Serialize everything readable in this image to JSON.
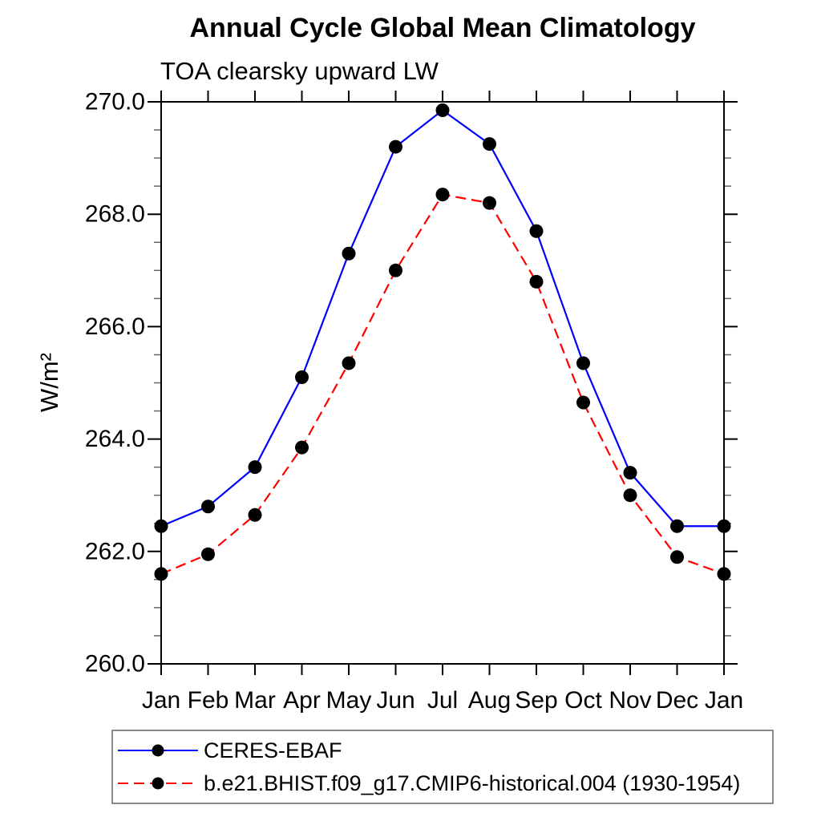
{
  "chart_data": {
    "type": "line",
    "title": "Annual Cycle Global Mean Climatology",
    "subtitle": "TOA clearsky upward LW",
    "ylabel": "W/m²",
    "xlabel": "",
    "x_categories": [
      "Jan",
      "Feb",
      "Mar",
      "Apr",
      "May",
      "Jun",
      "Jul",
      "Aug",
      "Sep",
      "Oct",
      "Nov",
      "Dec",
      "Jan"
    ],
    "ylim": [
      260.0,
      270.0
    ],
    "y_major_ticks": [
      260.0,
      262.0,
      264.0,
      266.0,
      268.0,
      270.0
    ],
    "y_tick_labels": [
      "260.0",
      "262.0",
      "264.0",
      "266.0",
      "268.0",
      "270.0"
    ],
    "y_minor_step": 0.5,
    "grid": false,
    "legend_position": "bottom-left",
    "axis_color": "#000000",
    "marker_shape": "filled-circle",
    "series": [
      {
        "name": "CERES-EBAF",
        "color": "#0000ff",
        "line_style": "solid",
        "marker_color": "#000000",
        "values": [
          262.45,
          262.8,
          263.5,
          265.1,
          267.3,
          269.2,
          269.85,
          269.25,
          267.7,
          265.35,
          263.4,
          262.45,
          262.45
        ]
      },
      {
        "name": "b.e21.BHIST.f09_g17.CMIP6-historical.004 (1930-1954)",
        "color": "#ff0000",
        "line_style": "dashed",
        "marker_color": "#000000",
        "values": [
          261.6,
          261.95,
          262.65,
          263.85,
          265.35,
          267.0,
          268.35,
          268.2,
          266.8,
          264.65,
          263.0,
          261.9,
          261.6
        ]
      }
    ]
  }
}
